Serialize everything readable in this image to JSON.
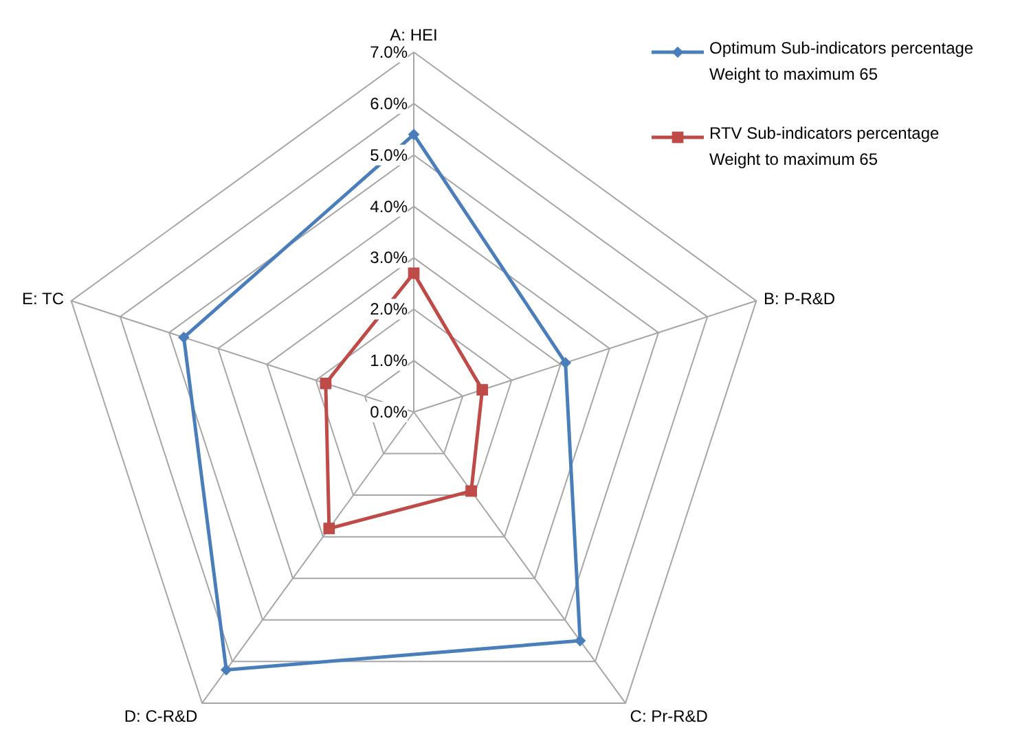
{
  "chart_data": {
    "type": "radar",
    "categories": [
      "A: HEI",
      "B: P-R&D",
      "C: Pr-R&D",
      "D: C-R&D",
      "E: TC"
    ],
    "ylim": [
      0,
      7
    ],
    "yticks": [
      {
        "value": 0,
        "label": "0.0%"
      },
      {
        "value": 1,
        "label": "1.0%"
      },
      {
        "value": 2,
        "label": "2.0%"
      },
      {
        "value": 3,
        "label": "3.0%"
      },
      {
        "value": 4,
        "label": "4.0%"
      },
      {
        "value": 5,
        "label": "5.0%"
      },
      {
        "value": 6,
        "label": "6.0%"
      },
      {
        "value": 7,
        "label": "7.0%"
      }
    ],
    "grid": true,
    "legend": "top right",
    "line_style": "solid",
    "series": [
      {
        "name": "Optimum Sub-indicators percentage Weight to maximum 65",
        "color": "#4a7ebb",
        "marker": "diamond",
        "values": [
          5.4,
          3.1,
          5.5,
          6.2,
          4.7
        ]
      },
      {
        "name": "RTV Sub-indicators percentage Weight to maximum 65",
        "color": "#be4b48",
        "marker": "square",
        "values": [
          2.7,
          1.4,
          1.9,
          2.8,
          1.8
        ]
      }
    ]
  }
}
